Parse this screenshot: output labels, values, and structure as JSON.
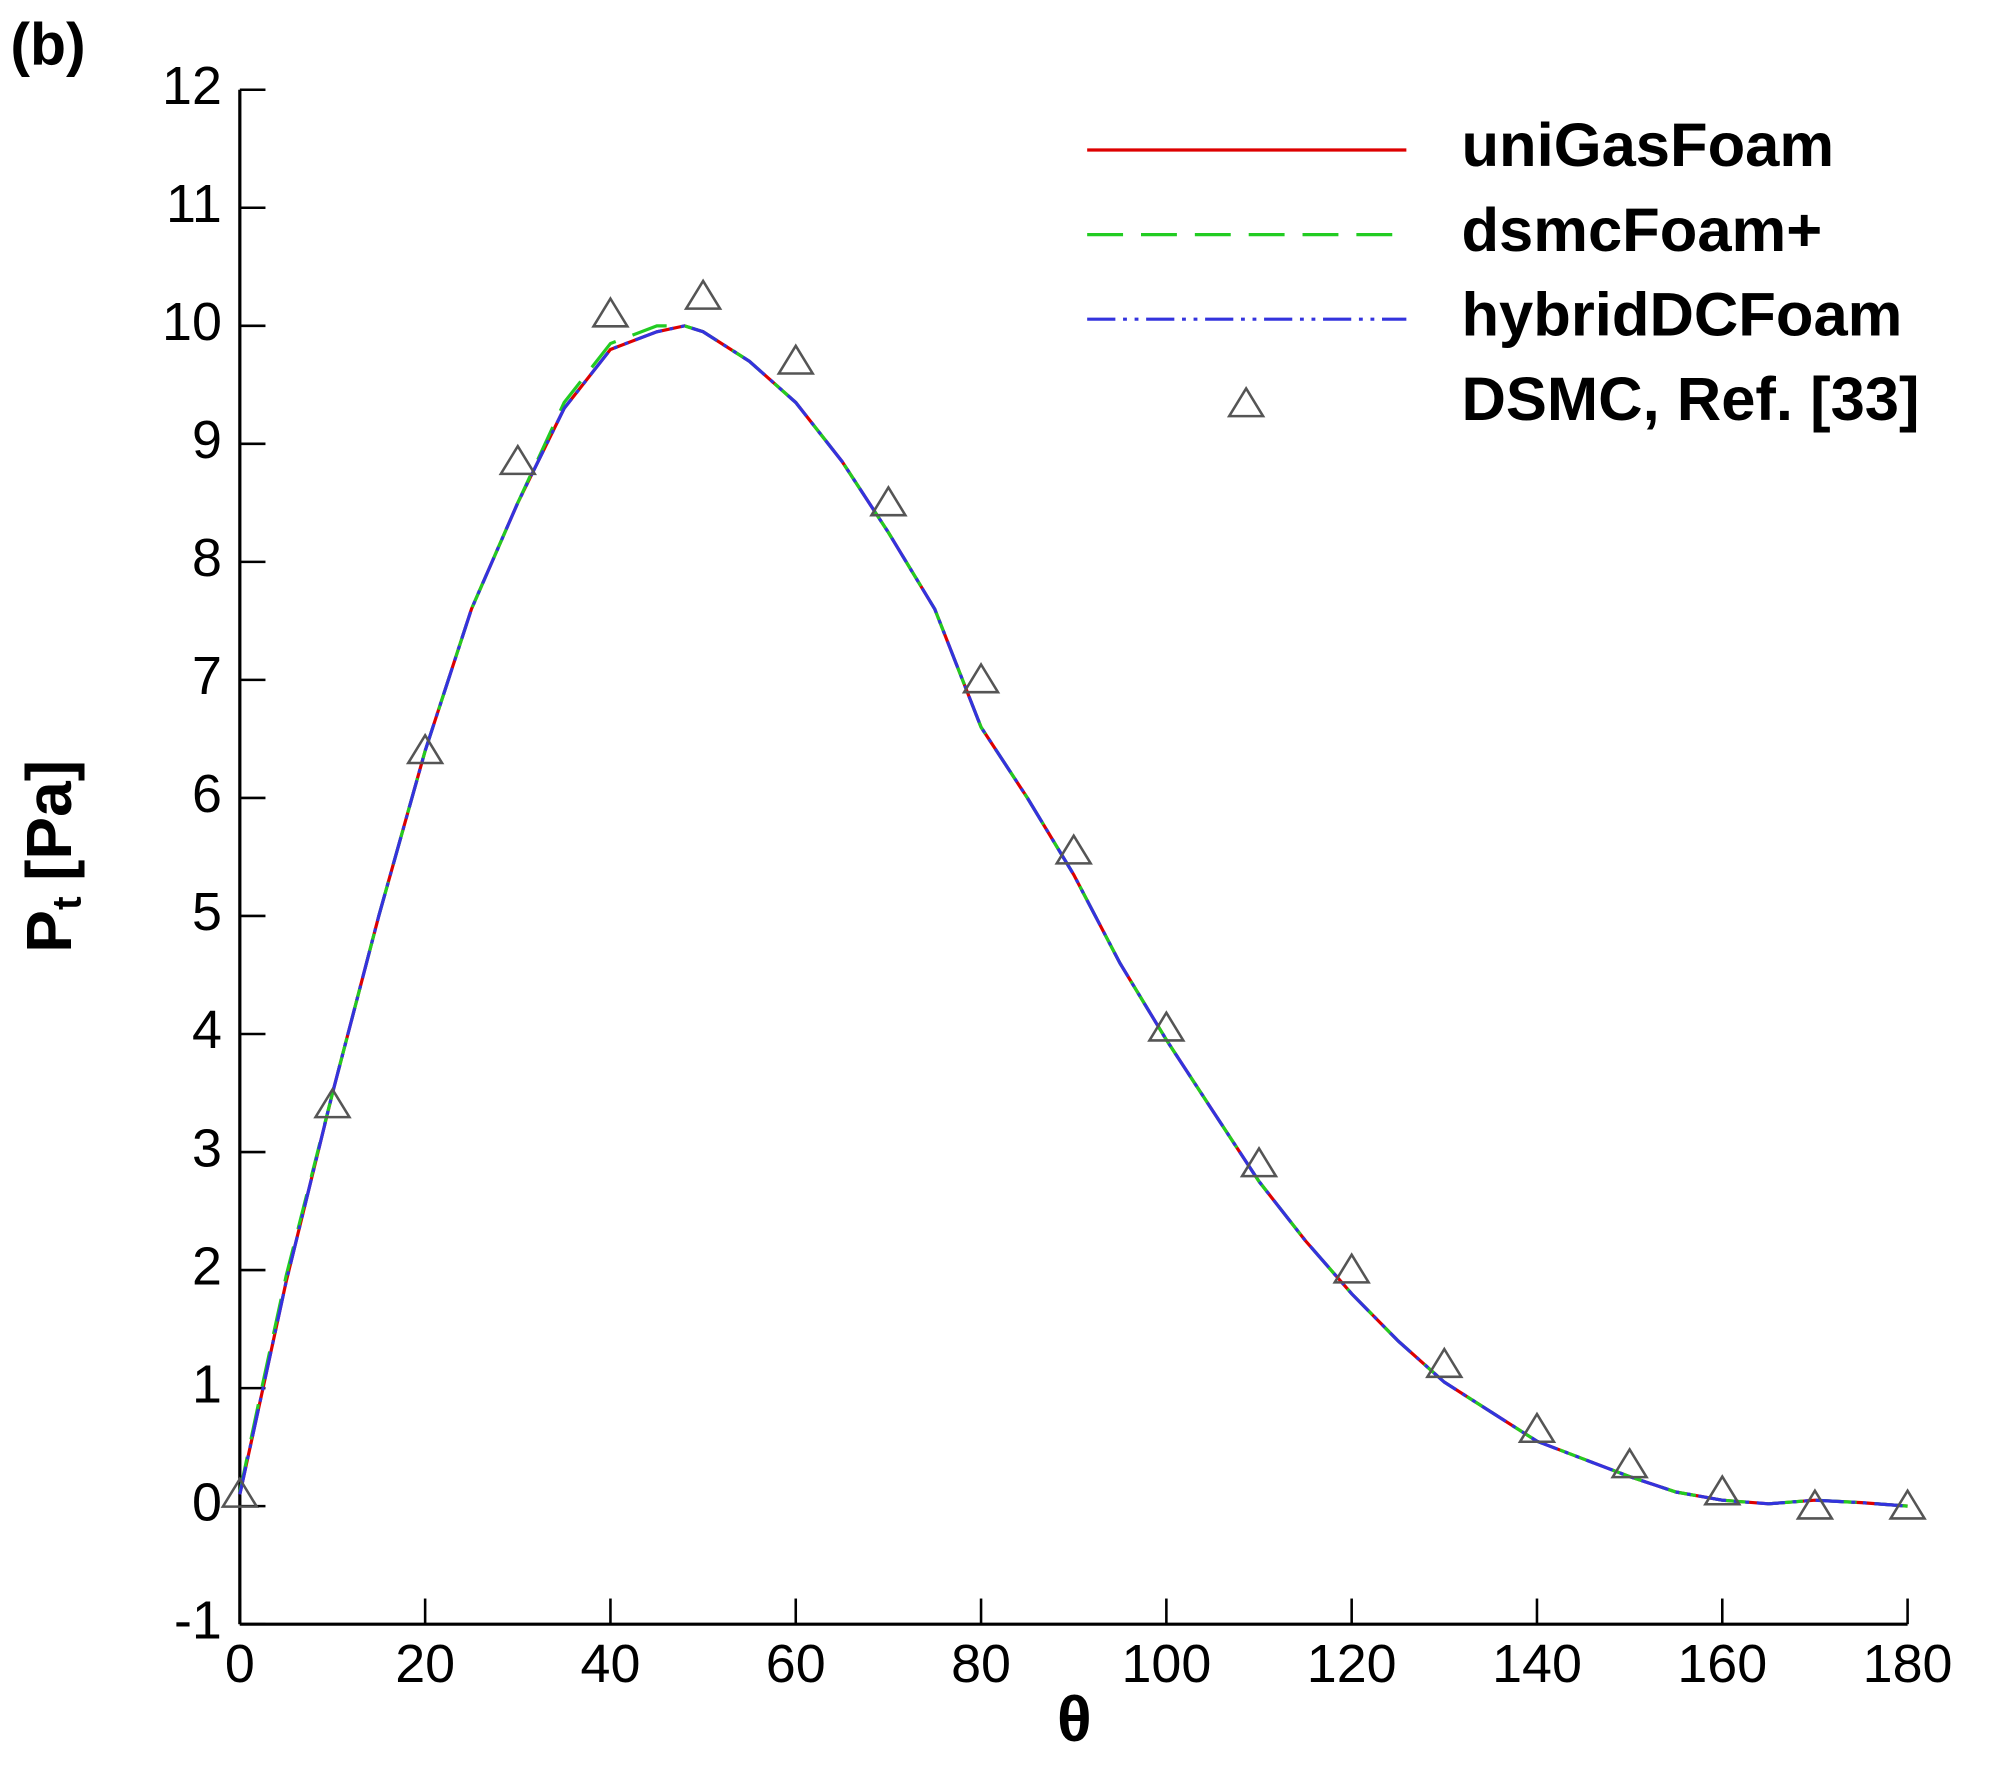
{
  "chart_data": {
    "type": "line",
    "panel_label": "(b)",
    "xlabel": "θ",
    "ylabel": {
      "main": "P",
      "sub": "t",
      "unit": "[Pa]"
    },
    "xlim": [
      0,
      180
    ],
    "xticks": [
      0,
      20,
      40,
      60,
      80,
      100,
      120,
      140,
      160,
      180
    ],
    "ylim": [
      -1,
      12
    ],
    "yticks": [
      -1,
      0,
      1,
      2,
      3,
      4,
      5,
      6,
      7,
      8,
      9,
      10,
      11,
      12
    ],
    "x": [
      0,
      2.5,
      5,
      10,
      15,
      20,
      25,
      30,
      35,
      40,
      45,
      48,
      50,
      55,
      60,
      65,
      70,
      75,
      80,
      85,
      90,
      95,
      100,
      105,
      110,
      115,
      120,
      125,
      130,
      135,
      140,
      145,
      150,
      155,
      160,
      165,
      170,
      175,
      180
    ],
    "series": [
      {
        "name": "uniGasFoam",
        "color": "#dd0000",
        "dash": "none",
        "values": [
          0.1,
          1.0,
          1.9,
          3.5,
          5.0,
          6.4,
          7.6,
          8.5,
          9.3,
          9.8,
          9.95,
          10.0,
          9.95,
          9.7,
          9.35,
          8.85,
          8.25,
          7.6,
          6.6,
          6.0,
          5.35,
          4.6,
          3.95,
          3.35,
          2.75,
          2.25,
          1.8,
          1.4,
          1.05,
          0.8,
          0.55,
          0.4,
          0.25,
          0.12,
          0.05,
          0.02,
          0.05,
          0.03,
          0.0
        ]
      },
      {
        "name": "dsmcFoam+",
        "color": "#22cc22",
        "dash": "28 14",
        "values": [
          0.12,
          1.05,
          1.95,
          3.5,
          5.0,
          6.4,
          7.6,
          8.5,
          9.35,
          9.85,
          10.0,
          10.0,
          9.95,
          9.7,
          9.35,
          8.85,
          8.25,
          7.6,
          6.6,
          6.0,
          5.35,
          4.6,
          3.95,
          3.35,
          2.75,
          2.25,
          1.8,
          1.4,
          1.05,
          0.8,
          0.55,
          0.4,
          0.25,
          0.12,
          0.05,
          0.02,
          0.05,
          0.03,
          0.0
        ]
      },
      {
        "name": "hybridDCFoam",
        "color": "#3333dd",
        "dash": "22 6 3 6 3 6",
        "values": [
          0.1,
          1.0,
          1.9,
          3.5,
          5.0,
          6.4,
          7.6,
          8.5,
          9.3,
          9.8,
          9.95,
          10.0,
          9.95,
          9.7,
          9.35,
          8.85,
          8.25,
          7.6,
          6.6,
          6.0,
          5.35,
          4.6,
          3.95,
          3.35,
          2.75,
          2.25,
          1.8,
          1.4,
          1.05,
          0.8,
          0.55,
          0.4,
          0.25,
          0.12,
          0.05,
          0.02,
          0.05,
          0.03,
          0.0
        ]
      },
      {
        "name": "DSMC, Ref. [33]",
        "color": "#555555",
        "marker": "triangle",
        "x": [
          0,
          10,
          20,
          30,
          40,
          50,
          60,
          70,
          80,
          90,
          100,
          110,
          120,
          130,
          140,
          150,
          160,
          170,
          180
        ],
        "values": [
          0.1,
          3.4,
          6.4,
          8.85,
          10.1,
          10.25,
          9.7,
          8.5,
          7.0,
          5.55,
          4.05,
          2.9,
          2.0,
          1.2,
          0.65,
          0.35,
          0.12,
          0.0,
          0.0
        ]
      }
    ]
  }
}
